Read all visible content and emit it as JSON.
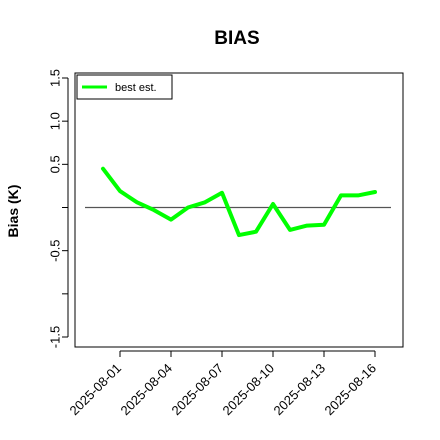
{
  "chart_data": {
    "type": "line",
    "title": "BIAS",
    "xlabel": "",
    "ylabel": "Bias (K)",
    "ylim": [
      -1.5,
      1.5
    ],
    "yticks": [
      -1.5,
      -1.0,
      -0.5,
      0.0,
      0.5,
      1.0,
      1.5
    ],
    "ytick_labels": [
      "-1.5",
      "",
      "-0.5",
      "",
      "0.5",
      "1.0",
      "1.5"
    ],
    "x": [
      "2025-07-31",
      "2025-08-01",
      "2025-08-02",
      "2025-08-03",
      "2025-08-04",
      "2025-08-05",
      "2025-08-06",
      "2025-08-07",
      "2025-08-08",
      "2025-08-09",
      "2025-08-10",
      "2025-08-11",
      "2025-08-12",
      "2025-08-13",
      "2025-08-14",
      "2025-08-15",
      "2025-08-16"
    ],
    "xticks": [
      "2025-08-01",
      "2025-08-04",
      "2025-08-07",
      "2025-08-10",
      "2025-08-13",
      "2025-08-16"
    ],
    "xlim": [
      "2025-07-30",
      "2025-08-17"
    ],
    "series": [
      {
        "name": "best est.",
        "color": "#00ff00",
        "values": [
          0.45,
          0.19,
          0.06,
          -0.03,
          -0.14,
          0.0,
          0.06,
          0.17,
          -0.32,
          -0.28,
          0.04,
          -0.26,
          -0.21,
          -0.2,
          0.14,
          0.14,
          0.18
        ]
      }
    ],
    "reference_line": {
      "y": 0.0,
      "color": "#555555"
    },
    "legend": "top-left",
    "grid": false
  }
}
